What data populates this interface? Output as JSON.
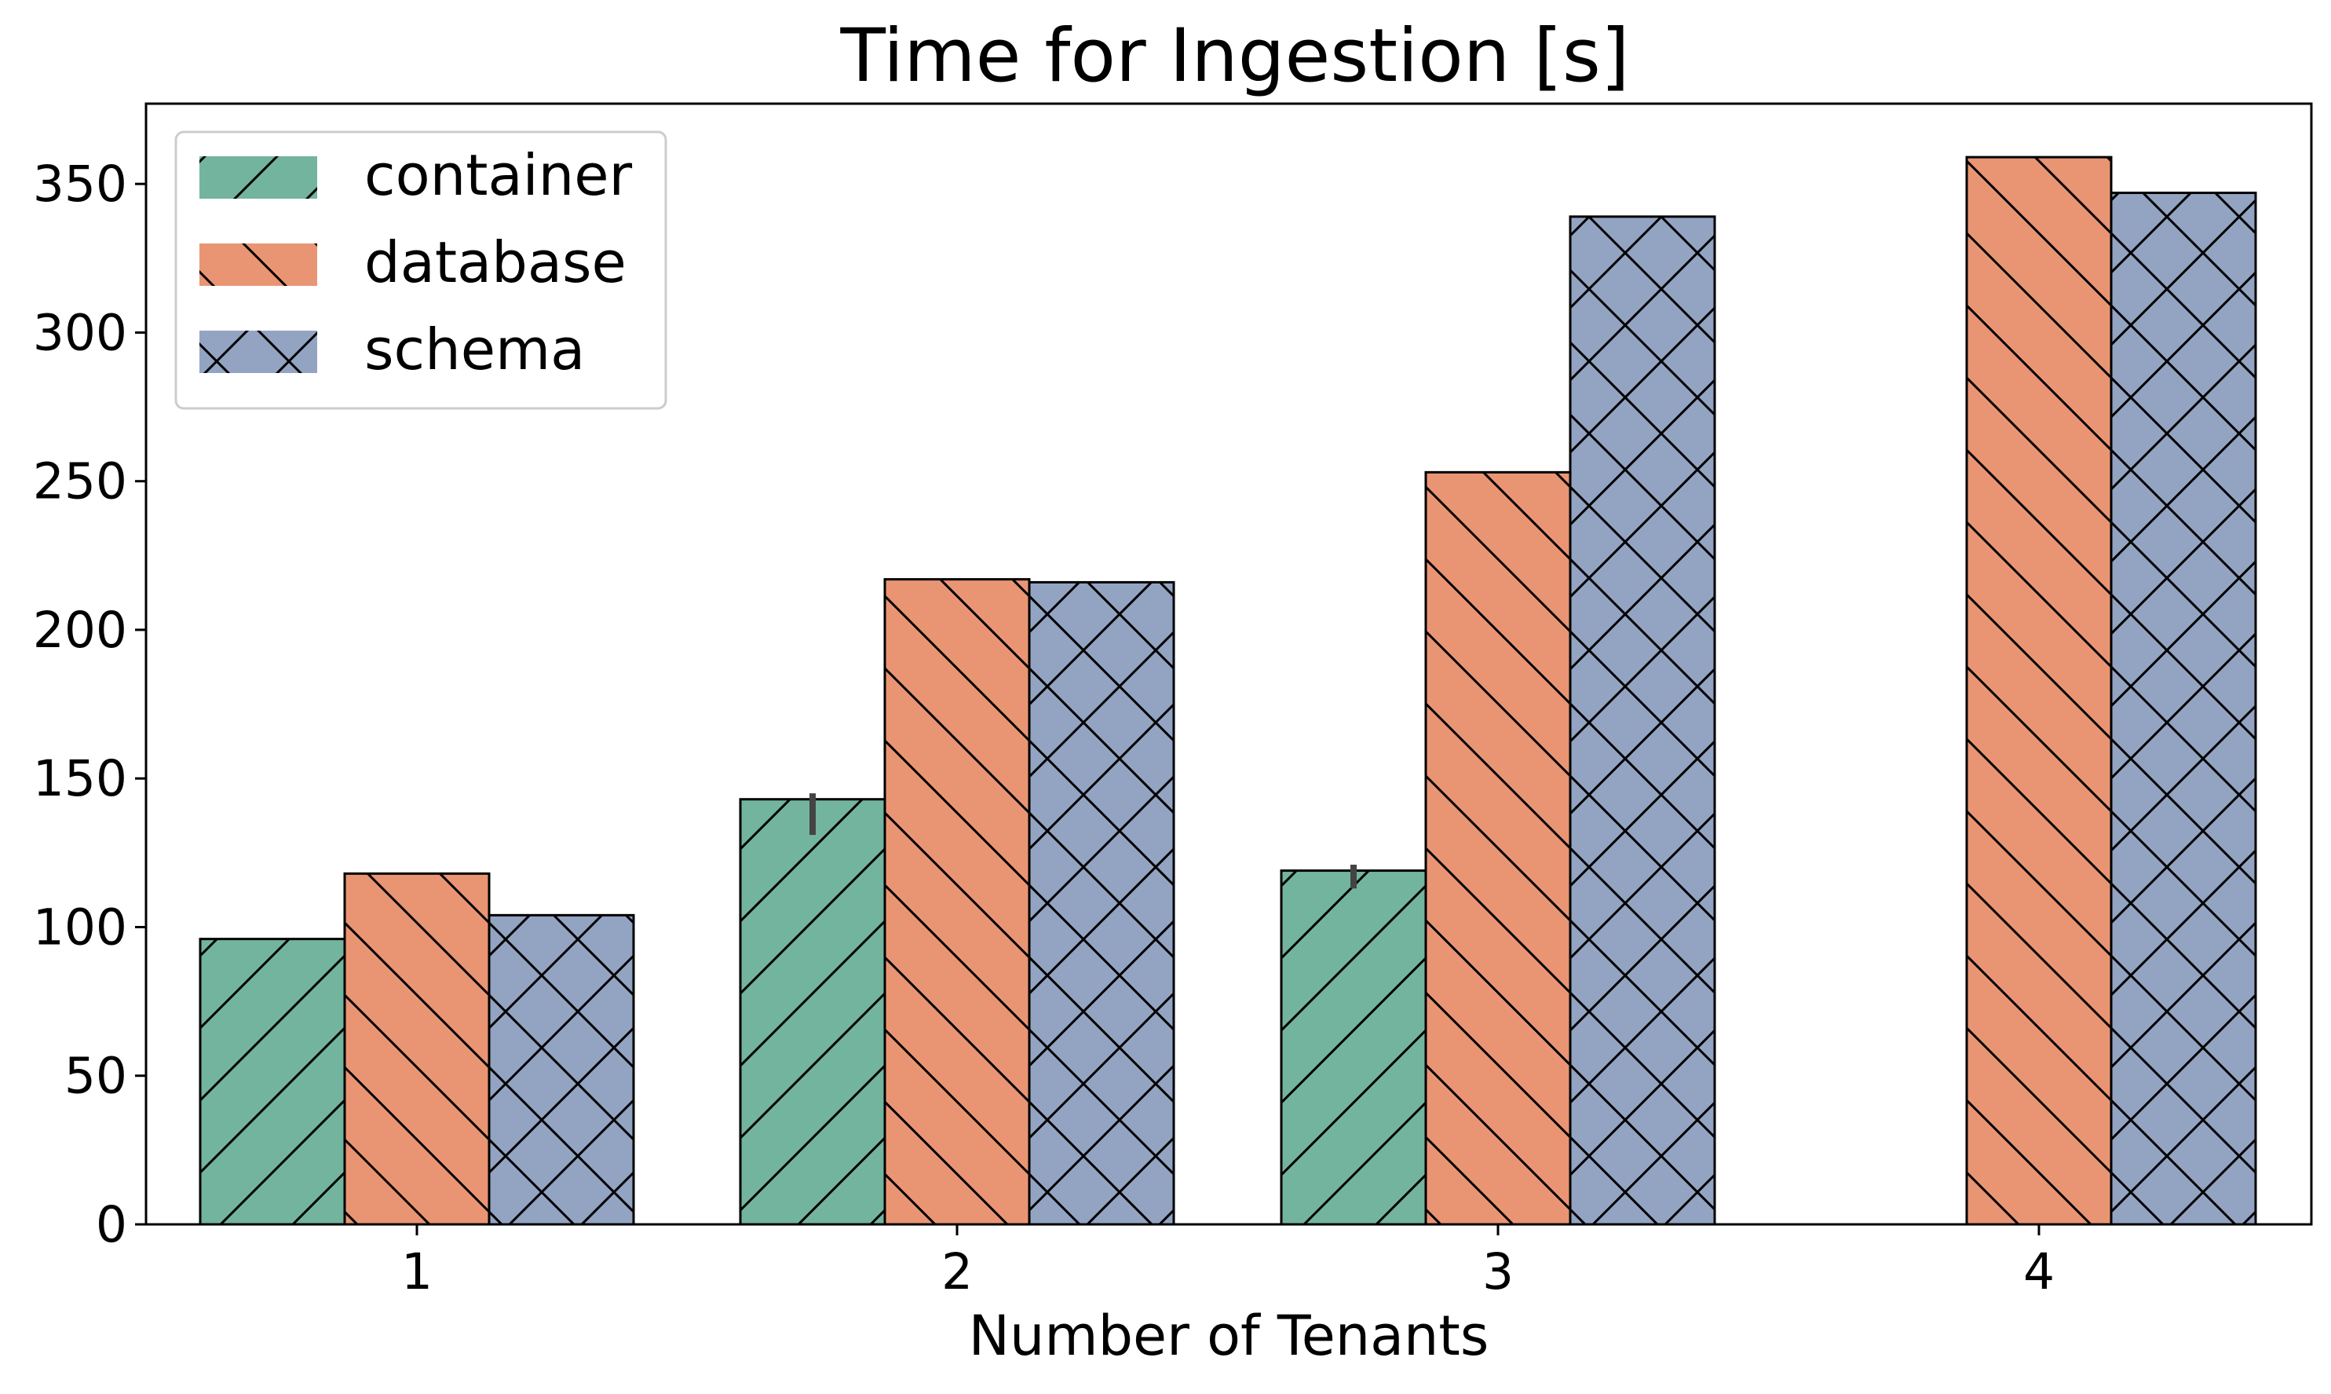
{
  "chart_data": {
    "type": "bar",
    "title": "Time for Ingestion [s]",
    "xlabel": "Number of Tenants",
    "ylabel": "",
    "categories": [
      "1",
      "2",
      "3",
      "4"
    ],
    "ylim": [
      0,
      377
    ],
    "yticks": [
      0,
      50,
      100,
      150,
      200,
      250,
      300,
      350
    ],
    "legend_position": "top-left",
    "grid": false,
    "series": [
      {
        "name": "container",
        "values": [
          96,
          143,
          119,
          null
        ],
        "color": "#73b49f",
        "hatch": "forward-slash",
        "error_bars": [
          null,
          [
            131,
            145
          ],
          [
            113,
            121
          ],
          null
        ]
      },
      {
        "name": "database",
        "values": [
          118,
          217,
          253,
          359
        ],
        "color": "#e99574",
        "hatch": "back-slash",
        "error_bars": [
          null,
          null,
          null,
          null
        ]
      },
      {
        "name": "schema",
        "values": [
          104,
          216,
          339,
          347
        ],
        "color": "#93a3c2",
        "hatch": "cross",
        "error_bars": [
          null,
          null,
          null,
          null
        ]
      }
    ]
  }
}
